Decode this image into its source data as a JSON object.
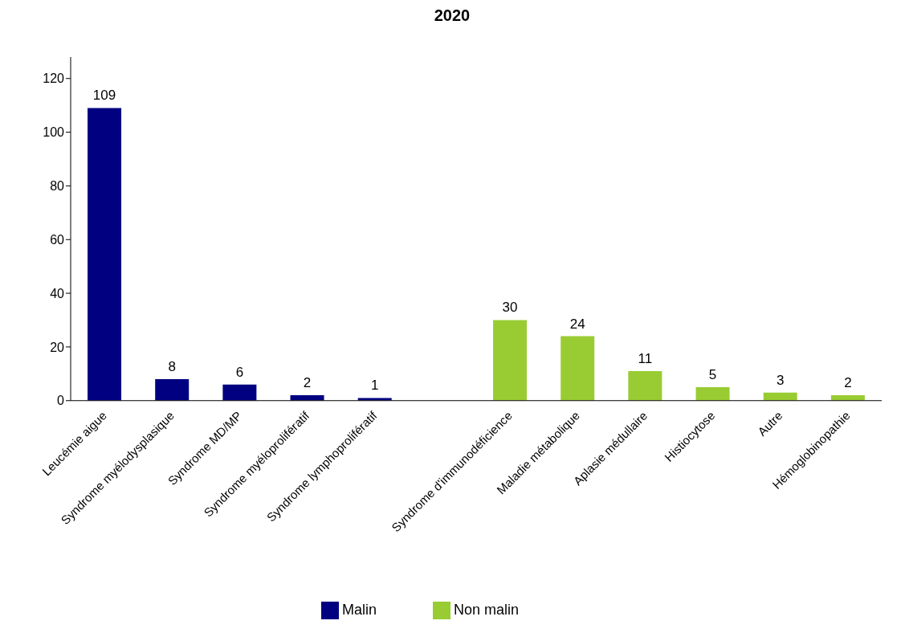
{
  "chart_data": {
    "type": "bar",
    "title": "2020",
    "categories": [
      "Leucémie aigue",
      "Syndrome myélodysplasique",
      "Syndrome MD/MP",
      "Syndrome myéloprolifératif",
      "Syndrome lymphoprolifératif",
      null,
      "Syndrome d'immunodéficience",
      "Maladie métabolique",
      "Aplasie médullaire",
      "Histiocytose",
      "Autre",
      "Hémoglobinopathie"
    ],
    "series": [
      {
        "name": "Malin",
        "color": "#000080",
        "values": [
          109,
          8,
          6,
          2,
          1,
          null,
          null,
          null,
          null,
          null,
          null,
          null
        ]
      },
      {
        "name": "Non malin",
        "color": "#99cc33",
        "values": [
          null,
          null,
          null,
          null,
          null,
          null,
          30,
          24,
          11,
          5,
          3,
          2
        ]
      }
    ],
    "stacked": true,
    "ylim": [
      0,
      128
    ],
    "yticks": [
      0,
      20,
      40,
      60,
      80,
      100,
      120
    ],
    "grid": false,
    "legend": "bottom",
    "data_labels": true
  }
}
